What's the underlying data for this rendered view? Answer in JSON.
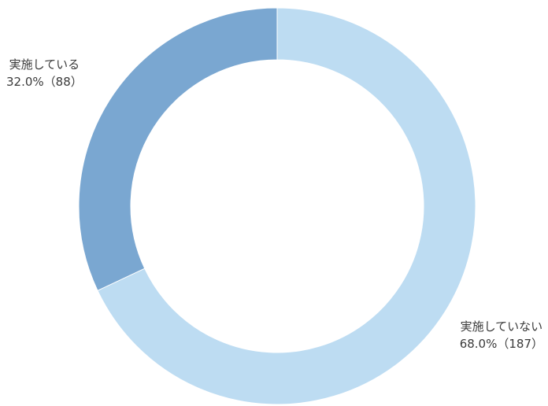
{
  "chart_data": {
    "type": "pie",
    "donut": true,
    "title": "",
    "legend": "none",
    "start_angle_deg": 0,
    "direction": "clockwise",
    "slices": [
      {
        "label": "実施していない",
        "percent": 68.0,
        "count": 187,
        "percent_text": "68.0%",
        "count_text": "（187）",
        "color": "#bddcf2"
      },
      {
        "label": "実施している",
        "percent": 32.0,
        "count": 88,
        "percent_text": "32.0%",
        "count_text": "（88）",
        "color": "#7aa7d1"
      }
    ]
  }
}
